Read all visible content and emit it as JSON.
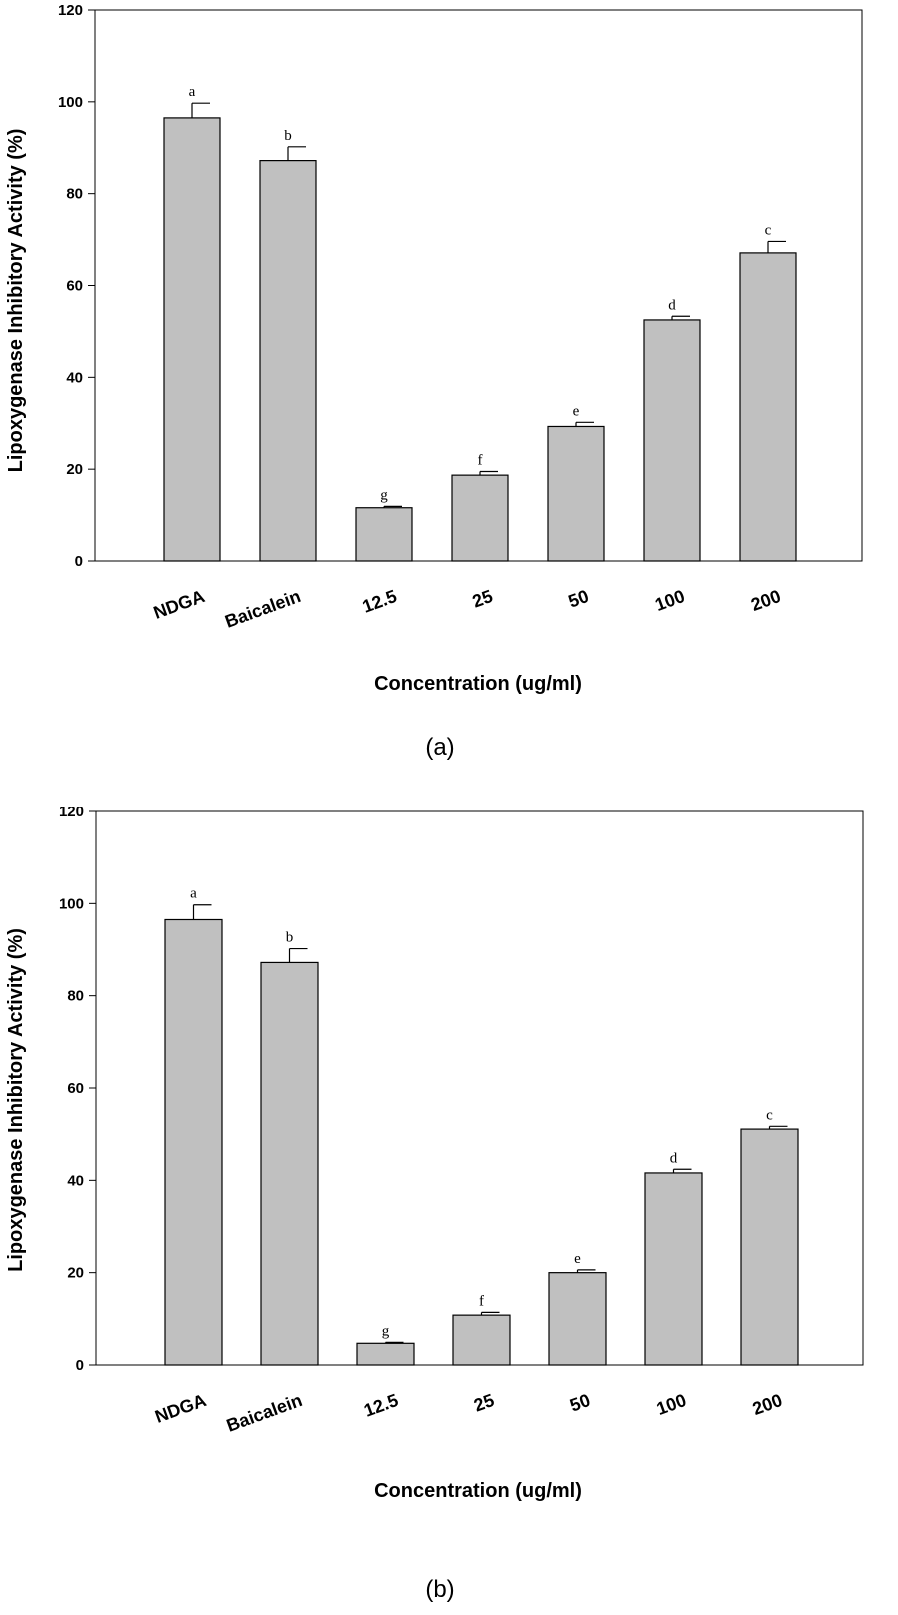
{
  "chart_data": [
    {
      "type": "bar",
      "panel_label": "(a)",
      "title": "",
      "xlabel": "Concentration (ug/ml)",
      "ylabel": "Lipoxygenase Inhibitory Activity (%)",
      "ylim": [
        0,
        120
      ],
      "yticks": [
        0,
        20,
        40,
        60,
        80,
        100,
        120
      ],
      "categories": [
        "NDGA",
        "Baicalein",
        "12.5",
        "25",
        "50",
        "100",
        "200"
      ],
      "values": [
        96.5,
        87.2,
        11.6,
        18.7,
        29.3,
        52.5,
        67.1
      ],
      "errors": [
        3.2,
        3.0,
        0.3,
        0.8,
        0.9,
        0.8,
        2.5
      ],
      "letters": [
        "a",
        "b",
        "g",
        "f",
        "e",
        "d",
        "c"
      ],
      "bar_color": "#c0c0c0"
    },
    {
      "type": "bar",
      "panel_label": "(b)",
      "title": "",
      "xlabel": "Concentration (ug/ml)",
      "ylabel": "Lipoxygenase Inhibitory Activity (%)",
      "ylim": [
        0,
        120
      ],
      "yticks": [
        0,
        20,
        40,
        60,
        80,
        100,
        120
      ],
      "categories": [
        "NDGA",
        "Baicalein",
        "12.5",
        "25",
        "50",
        "100",
        "200"
      ],
      "values": [
        96.5,
        87.2,
        4.7,
        10.8,
        20.0,
        41.6,
        51.1
      ],
      "errors": [
        3.2,
        3.0,
        0.2,
        0.6,
        0.6,
        0.8,
        0.6
      ],
      "letters": [
        "a",
        "b",
        "g",
        "f",
        "e",
        "d",
        "c"
      ],
      "bar_color": "#c0c0c0"
    }
  ]
}
